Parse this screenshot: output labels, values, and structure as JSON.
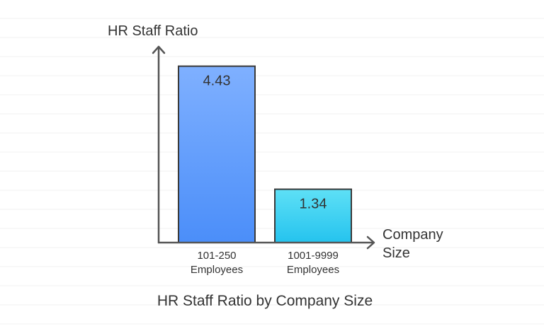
{
  "chart_data": {
    "type": "bar",
    "title": "HR Staff Ratio by Company Size",
    "ylabel": "HR Staff Ratio",
    "xlabel_lines": [
      "Company",
      "Size"
    ],
    "categories": [
      [
        "101-250",
        "Employees"
      ],
      [
        "1001-9999",
        "Employees"
      ]
    ],
    "values": [
      4.43,
      1.34
    ],
    "value_labels": [
      "4.43",
      "1.34"
    ],
    "ylim": [
      0,
      4.6
    ],
    "grid": false,
    "legend": "none",
    "bar_colors": [
      {
        "top": "#7fb0ff",
        "bottom": "#4b8ef9"
      },
      {
        "top": "#5ee0f6",
        "bottom": "#25c3ee"
      }
    ],
    "axis_color": "#555555",
    "bar_stroke": "#3a3a3a"
  }
}
